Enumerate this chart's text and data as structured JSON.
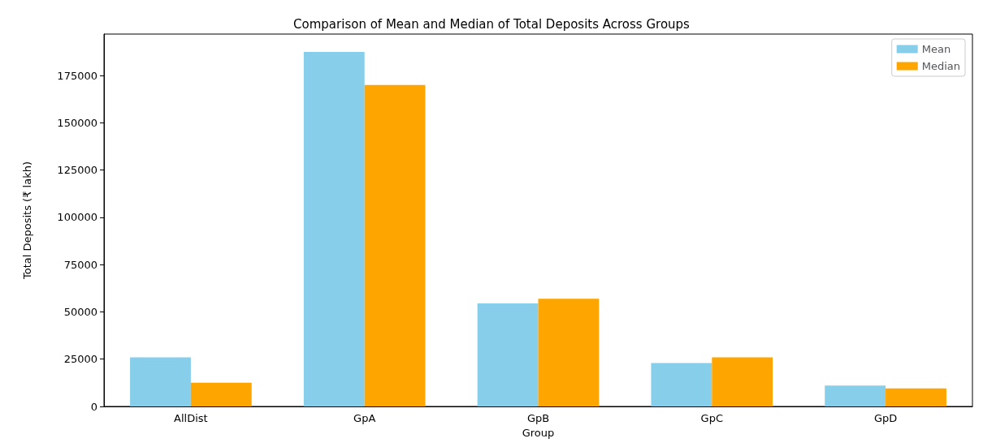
{
  "chart_data": {
    "type": "bar",
    "title": "Comparison of Mean and Median of Total Deposits Across Groups",
    "xlabel": "Group",
    "ylabel": "Total Deposits (₹ lakh)",
    "categories": [
      "AllDist",
      "GpA",
      "GpB",
      "GpC",
      "GpD"
    ],
    "series": [
      {
        "name": "Mean",
        "color": "#87ceeb",
        "values": [
          26000,
          187500,
          54500,
          23000,
          11000
        ]
      },
      {
        "name": "Median",
        "color": "#ffa500",
        "values": [
          12500,
          170000,
          57000,
          26000,
          9500
        ]
      }
    ],
    "ylim": [
      0,
      196900
    ],
    "yticks": [
      0,
      25000,
      50000,
      75000,
      100000,
      125000,
      150000,
      175000
    ],
    "grid": false,
    "legend": "top right"
  }
}
